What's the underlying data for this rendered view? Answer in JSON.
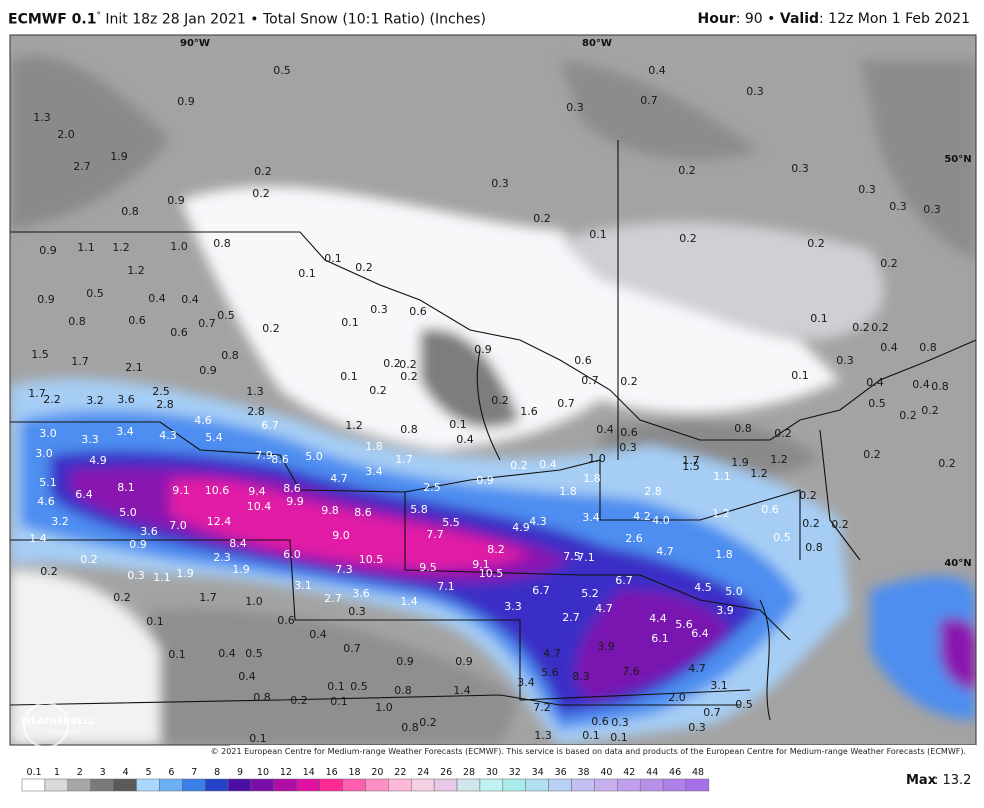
{
  "header": {
    "model": "ECMWF 0.1",
    "degree": "°",
    "init": "Init 18z 28 Jan 2021",
    "separator": "•",
    "product": "Total Snow (10:1 Ratio) (Inches)",
    "hour_label": "Hour",
    "hour": ": 90",
    "valid_label": "Valid",
    "valid": ": 12z Mon 1 Feb 2021"
  },
  "map": {
    "grid_labels": [
      "90°W",
      "80°W",
      "50°N",
      "40°N"
    ],
    "labels": [
      "1.3",
      "2.0",
      "2.7",
      "1.9",
      "0.9",
      "0.5",
      "0.8",
      "0.9",
      "0.9",
      "1.1",
      "1.2",
      "1.0",
      "0.8",
      "1.2",
      "0.9",
      "0.5",
      "0.4",
      "0.4",
      "0.8",
      "0.6",
      "0.7",
      "0.6",
      "0.5",
      "0.2",
      "1.5",
      "1.7",
      "2.1",
      "0.9",
      "0.8",
      "1.7",
      "2.2",
      "3.2",
      "3.6",
      "2.5",
      "2.8",
      "1.3",
      "2.8",
      "4.6",
      "6.7",
      "3.0",
      "3.3",
      "3.4",
      "4.3",
      "5.4",
      "3.0",
      "4.9",
      "7.9",
      "8.6",
      "5.0",
      "5.1",
      "6.4",
      "8.1",
      "9.1",
      "10.6",
      "9.4",
      "8.6",
      "4.6",
      "10.4",
      "9.9",
      "4.7",
      "3.4",
      "1.7",
      "2.5",
      "1.8",
      "1.2",
      "3.2",
      "5.0",
      "7.0",
      "12.4",
      "9.8",
      "8.6",
      "5.8",
      "5.5",
      "4.9",
      "4.3",
      "3.4",
      "4.2",
      "4.0",
      "1.2",
      "0.6",
      "0.2",
      "3.6",
      "8.4",
      "9.0",
      "7.7",
      "8.2",
      "2.6",
      "4.7",
      "1.8",
      "0.2",
      "0.2",
      "1.4",
      "0.9",
      "2.3",
      "6.0",
      "10.5",
      "9.5",
      "9.1",
      "10.5",
      "7.5",
      "7.1",
      "0.5",
      "0.8",
      "0.2",
      "0.2",
      "0.3",
      "1.1",
      "1.9",
      "1.9",
      "7.3",
      "6.7",
      "4.5",
      "5.0",
      "3.1",
      "2.7",
      "3.6",
      "7.1",
      "6.7",
      "5.2",
      "1.7",
      "1.0",
      "0.2",
      "1.4",
      "3.3",
      "4.7",
      "3.9",
      "2.7",
      "4.4",
      "5.6",
      "6.4",
      "0.6",
      "0.1",
      "0.4",
      "0.3",
      "0.7",
      "6.1",
      "4.7",
      "3.9",
      "0.1",
      "0.4",
      "0.5",
      "0.9",
      "0.9",
      "3.4",
      "5.6",
      "8.3",
      "7.6",
      "4.7",
      "3.1",
      "0.4",
      "0.1",
      "0.5",
      "1.4",
      "0.8",
      "0.8",
      "0.2",
      "0.1",
      "7.2",
      "2.0",
      "1.0",
      "0.5",
      "0.7",
      "0.6",
      "0.3",
      "0.8",
      "0.2",
      "0.3",
      "0.1",
      "0.1",
      "1.3",
      "0.1",
      "0.4",
      "0.3",
      "0.7",
      "0.3",
      "0.3",
      "0.2",
      "0.2",
      "0.2",
      "0.1",
      "0.2",
      "0.2",
      "0.3",
      "0.3",
      "0.3",
      "0.3",
      "0.2",
      "0.2",
      "0.1",
      "0.2",
      "0.1",
      "0.3",
      "0.1",
      "0.6",
      "0.9",
      "0.6",
      "0.7",
      "0.2",
      "0.2",
      "0.2",
      "0.2",
      "0.1",
      "0.2",
      "1.6",
      "0.7",
      "0.1",
      "0.4",
      "0.8",
      "0.4",
      "0.6",
      "0.3",
      "0.8",
      "0.2",
      "1.7",
      "1.5",
      "1.9",
      "1.1",
      "1.2",
      "1.2",
      "0.2",
      "0.4",
      "1.0",
      "0.9",
      "1.8",
      "1.8",
      "2.8",
      "0.1",
      "0.2",
      "0.2",
      "0.4",
      "0.8",
      "0.1",
      "0.3",
      "0.4",
      "0.4",
      "0.8",
      "0.5",
      "0.2",
      "0.2",
      "0.2",
      "0.2",
      "0.2"
    ],
    "copyright": "© 2021 European Centre for Medium-range Weather Forecasts (ECMWF). This service is based on data and products of the European Centre for Medium-range Weather Forecasts (ECMWF).",
    "logo": "WEATHERBELL",
    "logo_sub": "Analytics LLC"
  },
  "colorbar": {
    "labels": [
      "0.1",
      "1",
      "2",
      "3",
      "4",
      "5",
      "6",
      "7",
      "8",
      "9",
      "10",
      "12",
      "14",
      "16",
      "18",
      "20",
      "22",
      "24",
      "26",
      "28",
      "30",
      "32",
      "34",
      "36",
      "38",
      "40",
      "42",
      "44",
      "46",
      "48"
    ],
    "colors": [
      "#ffffff",
      "#d9d9d9",
      "#a6a6a6",
      "#7a7a7a",
      "#5a5a5a",
      "#a8d8ff",
      "#6bb0f5",
      "#3b7fe8",
      "#2443c9",
      "#4c0fa5",
      "#7a0fa8",
      "#b00ca8",
      "#e010a0",
      "#ff2a93",
      "#ff5fae",
      "#ff90c6",
      "#ffb8d8",
      "#f5d0e2",
      "#e8c8e8",
      "#d0e6ec",
      "#c0f2f2",
      "#a8ecec",
      "#b0e0f0",
      "#b8d0f4",
      "#c4c0f2",
      "#c8b0f0",
      "#c0a0ee",
      "#b890ec",
      "#b080ea",
      "#a870e8"
    ],
    "max_label": "Max",
    "max_value": ": 13.2"
  }
}
